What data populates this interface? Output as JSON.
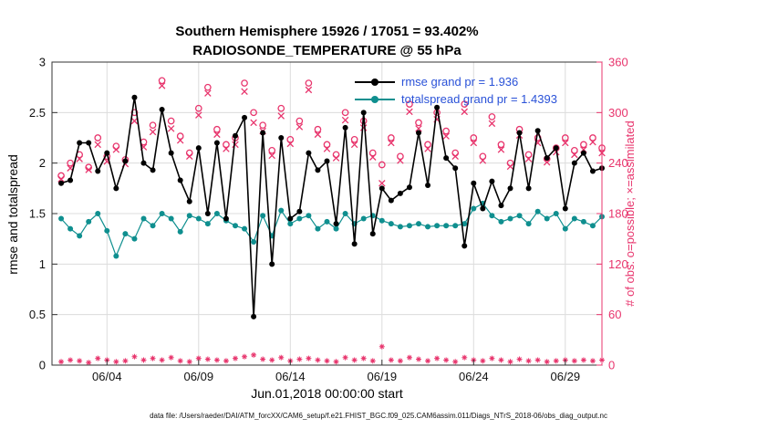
{
  "figure": {
    "footer": "data file: /Users/raeder/DAI/ATM_forcXX/CAM6_setup/f.e21.FHIST_BGC.f09_025.CAM6assim.011/Diags_NTrS_2018-06/obs_diag_output.nc"
  },
  "colors": {
    "rmse": "#000000",
    "totalspread": "#0f8f8f",
    "obs_counts": "#e8356d",
    "legend_text": "#2a52d8",
    "grid": "#dcdcdc",
    "axis_box": "#333333",
    "tick_text": "#111111"
  },
  "chart_data": {
    "type": "line",
    "title": "Southern Hemisphere 15926 / 17051 = 93.402%",
    "subtitle": "RADIOSONDE_TEMPERATURE @ 55 hPa",
    "xlabel": "Jun.01,2018 00:00:00 start",
    "ylabel_left": "rmse and totalspread",
    "ylabel_right": "# of obs: o=possible; ×=assimilated",
    "grid": true,
    "legend_position": "upper-center-right-inside",
    "xlim": [
      0,
      30
    ],
    "ylim_left": [
      0,
      3
    ],
    "ylim_right": [
      0,
      360
    ],
    "xticks": [
      {
        "t": 3,
        "label": "06/04"
      },
      {
        "t": 8,
        "label": "06/09"
      },
      {
        "t": 13,
        "label": "06/14"
      },
      {
        "t": 18,
        "label": "06/19"
      },
      {
        "t": 23,
        "label": "06/24"
      },
      {
        "t": 28,
        "label": "06/29"
      }
    ],
    "yticks_left": [
      {
        "v": 0,
        "label": "0"
      },
      {
        "v": 0.5,
        "label": "0.5"
      },
      {
        "v": 1,
        "label": "1"
      },
      {
        "v": 1.5,
        "label": "1.5"
      },
      {
        "v": 2,
        "label": "2"
      },
      {
        "v": 2.5,
        "label": "2.5"
      },
      {
        "v": 3,
        "label": "3"
      }
    ],
    "yticks_right": [
      {
        "v": 0,
        "label": "0"
      },
      {
        "v": 60,
        "label": "60"
      },
      {
        "v": 120,
        "label": "120"
      },
      {
        "v": 180,
        "label": "180"
      },
      {
        "v": 240,
        "label": "240"
      },
      {
        "v": 300,
        "label": "300"
      },
      {
        "v": 360,
        "label": "360"
      }
    ],
    "x_days": [
      0.5,
      1,
      1.5,
      2,
      2.5,
      3,
      3.5,
      4,
      4.5,
      5,
      5.5,
      6,
      6.5,
      7,
      7.5,
      8,
      8.5,
      9,
      9.5,
      10,
      10.5,
      11,
      11.5,
      12,
      12.5,
      13,
      13.5,
      14,
      14.5,
      15,
      15.5,
      16,
      16.5,
      17,
      17.5,
      18,
      18.5,
      19,
      19.5,
      20,
      20.5,
      21,
      21.5,
      22,
      22.5,
      23,
      23.5,
      24,
      24.5,
      25,
      25.5,
      26,
      26.5,
      27,
      27.5,
      28,
      28.5,
      29,
      29.5,
      30
    ],
    "series": [
      {
        "name": "n_possible",
        "axis": "right",
        "marker": "open-circle",
        "line": false,
        "color_key": "obs_counts",
        "values": [
          225,
          240,
          250,
          235,
          270,
          248,
          260,
          244,
          300,
          265,
          285,
          338,
          290,
          272,
          252,
          305,
          330,
          280,
          262,
          270,
          335,
          300,
          285,
          255,
          305,
          268,
          290,
          335,
          280,
          262,
          250,
          300,
          268,
          290,
          252,
          238,
          270,
          248,
          310,
          288,
          262,
          300,
          278,
          252,
          310,
          270,
          248,
          295,
          262,
          240,
          280,
          250,
          270,
          245,
          258,
          270,
          255,
          262,
          270,
          258
        ]
      },
      {
        "name": "n_assimilated",
        "axis": "right",
        "marker": "x",
        "line": false,
        "color_key": "obs_counts",
        "values": [
          221,
          234,
          245,
          232,
          262,
          242,
          256,
          239,
          290,
          259,
          277,
          332,
          281,
          267,
          248,
          297,
          323,
          274,
          257,
          262,
          325,
          288,
          278,
          249,
          296,
          263,
          283,
          327,
          274,
          257,
          246,
          291,
          262,
          282,
          247,
          216,
          264,
          243,
          301,
          281,
          257,
          292,
          272,
          248,
          301,
          264,
          243,
          287,
          256,
          236,
          273,
          245,
          264,
          241,
          253,
          264,
          250,
          256,
          265,
          252
        ]
      },
      {
        "name": "n_rejected",
        "axis": "right",
        "marker": "star",
        "line": false,
        "color_key": "obs_counts",
        "values": [
          4,
          6,
          5,
          3,
          8,
          6,
          4,
          5,
          10,
          6,
          8,
          6,
          9,
          5,
          4,
          8,
          7,
          6,
          5,
          8,
          10,
          12,
          7,
          6,
          9,
          5,
          7,
          8,
          6,
          5,
          4,
          9,
          6,
          8,
          5,
          22,
          6,
          5,
          9,
          7,
          5,
          8,
          6,
          4,
          9,
          6,
          5,
          8,
          6,
          4,
          7,
          5,
          6,
          4,
          5,
          6,
          5,
          6,
          5,
          6
        ]
      },
      {
        "name": "totalspread",
        "axis": "left",
        "marker": "dot",
        "line": true,
        "color_key": "totalspread",
        "values": [
          1.45,
          1.35,
          1.28,
          1.42,
          1.5,
          1.33,
          1.08,
          1.3,
          1.25,
          1.45,
          1.38,
          1.5,
          1.45,
          1.32,
          1.48,
          1.45,
          1.4,
          1.5,
          1.43,
          1.38,
          1.35,
          1.22,
          1.48,
          1.28,
          1.53,
          1.4,
          1.45,
          1.48,
          1.35,
          1.42,
          1.35,
          1.5,
          1.4,
          1.45,
          1.48,
          1.43,
          1.4,
          1.37,
          1.38,
          1.4,
          1.37,
          1.38,
          1.38,
          1.38,
          1.4,
          1.55,
          1.6,
          1.48,
          1.42,
          1.45,
          1.48,
          1.4,
          1.52,
          1.45,
          1.5,
          1.35,
          1.45,
          1.42,
          1.38,
          1.47
        ]
      },
      {
        "name": "rmse",
        "axis": "left",
        "marker": "dot",
        "line": true,
        "color_key": "rmse",
        "values": [
          1.8,
          1.83,
          2.2,
          2.2,
          1.92,
          2.1,
          1.75,
          2.02,
          2.65,
          2.0,
          1.93,
          2.53,
          2.1,
          1.83,
          1.62,
          2.15,
          1.5,
          2.2,
          1.45,
          2.27,
          2.45,
          0.48,
          2.3,
          1.0,
          2.25,
          1.45,
          1.52,
          2.1,
          1.93,
          2.02,
          1.4,
          2.35,
          1.2,
          2.5,
          1.3,
          1.75,
          1.63,
          1.7,
          1.76,
          2.3,
          1.78,
          2.55,
          2.05,
          1.95,
          1.18,
          1.8,
          1.55,
          1.82,
          1.58,
          1.75,
          2.3,
          1.75,
          2.32,
          2.05,
          2.15,
          1.55,
          2.0,
          2.1,
          1.92,
          1.95
        ]
      }
    ],
    "legend": [
      {
        "label": "rmse grand pr = 1.936",
        "series": "rmse"
      },
      {
        "label": "totalspread grand pr = 1.4393",
        "series": "totalspread"
      }
    ],
    "stats": {
      "obs_used": 15926,
      "obs_possible": 17051,
      "percent_used": 93.402,
      "rmse_grand_prior": 1.936,
      "totalspread_grand_prior": 1.4393
    }
  }
}
